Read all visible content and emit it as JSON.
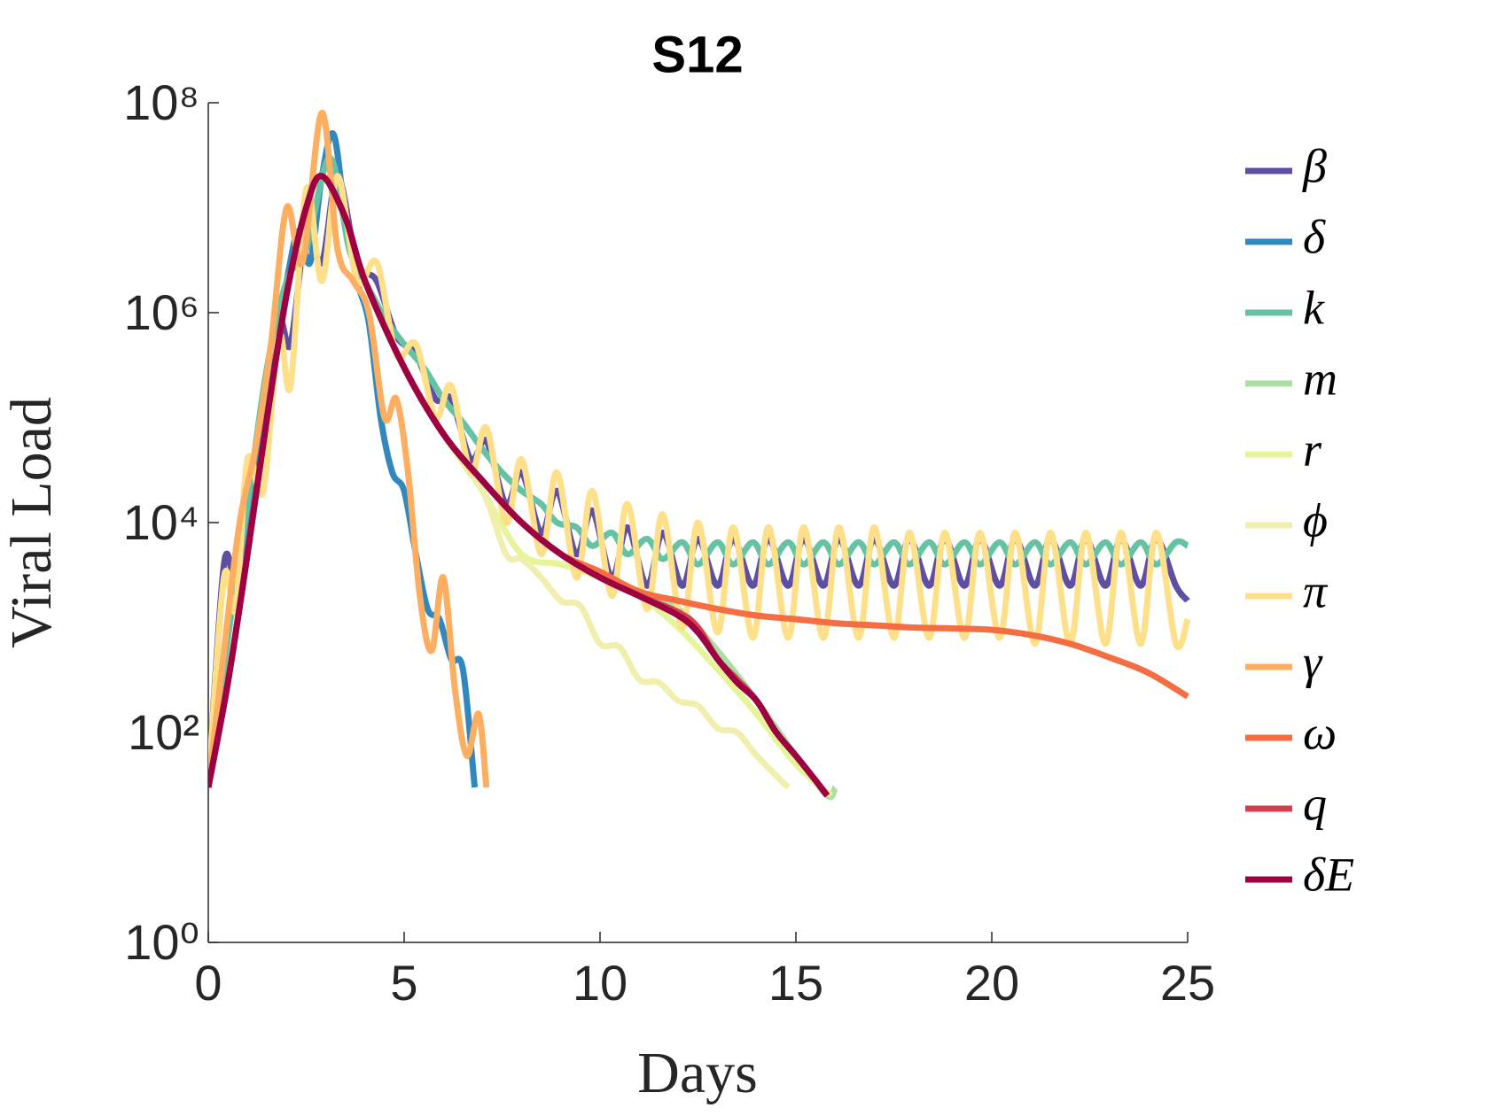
{
  "chart_data": {
    "type": "line",
    "title": "S12",
    "xlabel": "Days",
    "ylabel": "Viral Load",
    "log_y": true,
    "legend": "right",
    "xlim": [
      0,
      25
    ],
    "xticks": [
      0,
      5,
      10,
      15,
      20,
      25
    ],
    "ylim": [
      1,
      100000000
    ],
    "yticks": [
      {
        "value": 1,
        "label": "10⁰"
      },
      {
        "value": 100,
        "label": "10²"
      },
      {
        "value": 10000,
        "label": "10⁴"
      },
      {
        "value": 1000000,
        "label": "10⁶"
      },
      {
        "value": 100000000,
        "label": "10⁸"
      }
    ],
    "series": [
      {
        "name": "β",
        "color": "#5e4fa2",
        "x": [
          0,
          0.4,
          0.7,
          1.0,
          1.4,
          1.8,
          2.1,
          2.5,
          2.9,
          3.3,
          3.8,
          4.3,
          4.8,
          5.3,
          5.8,
          6.2,
          6.7,
          7.1,
          7.6,
          8.0,
          8.5,
          8.9,
          9.4,
          9.8,
          10.3,
          10.7,
          11.2,
          11.6,
          12.1,
          12.5,
          13.0,
          13.4,
          13.9,
          14.3,
          14.8,
          15.2,
          15.7,
          16.1,
          16.6,
          17.0,
          17.5,
          17.9,
          18.4,
          18.8,
          19.3,
          19.7,
          20.2,
          20.6,
          21.1,
          21.5,
          22.0,
          22.4,
          22.9,
          23.3,
          23.8,
          24.2,
          24.7,
          25.0
        ],
        "values": [
          30,
          4000,
          3000,
          30000.0,
          60000.0,
          800000.0,
          500000.0,
          6000000.0,
          3000000.0,
          20000000.0,
          3000000.0,
          2000000.0,
          600000.0,
          400000.0,
          150000.0,
          150000.0,
          40000.0,
          60000.0,
          15000.0,
          30000.0,
          8000.0,
          20000.0,
          5000.0,
          13000.0,
          3000.0,
          9000.0,
          2500.0,
          8000.0,
          2500.0,
          7000.0,
          2500.0,
          7000.0,
          2500.0,
          7000.0,
          2500.0,
          7000.0,
          2500.0,
          7000.0,
          2500.0,
          7000.0,
          2500.0,
          7000.0,
          2500.0,
          7000.0,
          2500.0,
          7000.0,
          2500.0,
          7000.0,
          2500.0,
          7000.0,
          2500.0,
          7000.0,
          2500.0,
          7000.0,
          2500.0,
          7000.0,
          2500.0,
          1800.0
        ]
      },
      {
        "name": "δ",
        "color": "#3288bd",
        "x": [
          0,
          0.5,
          1,
          1.5,
          2,
          2.3,
          2.6,
          2.9,
          3.2,
          3.5,
          3.8,
          4.1,
          4.4,
          4.7,
          5,
          5.3,
          5.6,
          5.9,
          6.2,
          6.5,
          6.8
        ],
        "values": [
          30,
          1000,
          10000.0,
          200000.0,
          2000000.0,
          6000000.0,
          3000000.0,
          20000000.0,
          50000000.0,
          8000000.0,
          2000000.0,
          800000.0,
          100000.0,
          30000.0,
          20000.0,
          5000.0,
          1500.0,
          1200.0,
          500,
          400,
          30
        ]
      },
      {
        "name": "k",
        "color": "#66c2a5",
        "x": [
          0,
          0.5,
          1,
          1.5,
          2,
          2.5,
          3.1,
          3.6,
          4,
          4.5,
          5,
          5.5,
          6,
          6.5,
          7,
          7.5,
          8,
          8.5,
          8.9,
          9.4,
          9.8,
          10.3,
          10.7,
          11.2,
          11.6,
          12.1,
          12.5,
          13.0,
          13.4,
          13.9,
          14.3,
          14.8,
          15.2,
          15.7,
          16.1,
          16.6,
          17.0,
          17.5,
          17.9,
          18.4,
          18.8,
          19.3,
          19.7,
          20.2,
          20.6,
          21.1,
          21.5,
          22.0,
          22.4,
          22.9,
          23.3,
          23.8,
          24.2,
          24.7,
          25.0
        ],
        "values": [
          30,
          800,
          15000.0,
          300000.0,
          2000000.0,
          4000000.0,
          30000000.0,
          4000000.0,
          2000000.0,
          900000.0,
          500000.0,
          300000.0,
          150000.0,
          90000.0,
          50000.0,
          30000.0,
          20000.0,
          15000.0,
          10000.0,
          9000.0,
          6000.0,
          8000.0,
          5000.0,
          7000.0,
          4500.0,
          6500.0,
          4000.0,
          6500.0,
          4000.0,
          6500.0,
          4000.0,
          6500.0,
          4000.0,
          6500.0,
          4000.0,
          6500.0,
          4000.0,
          6500.0,
          4000.0,
          6500.0,
          4000.0,
          6500.0,
          4000.0,
          6500.0,
          4000.0,
          6500.0,
          4000.0,
          6500.0,
          4000.0,
          6500.0,
          4000.0,
          6500.0,
          4000.0,
          6500.0,
          6000.0
        ]
      },
      {
        "name": "m",
        "color": "#abdda4",
        "x": [
          0,
          0.5,
          1,
          1.5,
          2,
          2.5,
          2.9,
          3.5,
          4,
          5,
          6,
          7,
          8,
          9,
          10,
          11,
          12,
          13,
          14,
          15,
          15.8,
          16
        ],
        "values": [
          30,
          300,
          5000.0,
          100000.0,
          1500000.0,
          10000000.0,
          20000000.0,
          8000000.0,
          2000000.0,
          300000.0,
          70000.0,
          25000.0,
          10000.0,
          5000.0,
          3000.0,
          2000.0,
          1500.0,
          600.0,
          200.0,
          60,
          25,
          30
        ]
      },
      {
        "name": "r",
        "color": "#e6f598",
        "x": [
          0,
          0.5,
          1,
          1.5,
          2,
          2.5,
          2.9,
          3.5,
          4,
          5,
          6,
          7,
          8,
          9,
          10,
          11,
          12,
          13,
          14,
          15,
          15.9
        ],
        "values": [
          30,
          300,
          5000.0,
          100000.0,
          1500000.0,
          10000000.0,
          20000000.0,
          8000000.0,
          2000000.0,
          300000.0,
          70000.0,
          20000.0,
          5000.0,
          4000.0,
          3000.0,
          2000.0,
          1000.0,
          400.0,
          150.0,
          50,
          25
        ]
      },
      {
        "name": "ϕ",
        "color": "#f1efae",
        "x": [
          0,
          0.5,
          1,
          1.5,
          2,
          2.5,
          2.9,
          3.5,
          4,
          5,
          6,
          7,
          7.6,
          8,
          8.5,
          9,
          9.5,
          10,
          10.5,
          11,
          11.5,
          12,
          12.5,
          13,
          13.5,
          14,
          14.8
        ],
        "values": [
          30,
          300,
          5000.0,
          100000.0,
          1500000.0,
          10000000.0,
          20000000.0,
          8000000.0,
          2000000.0,
          300000.0,
          70000.0,
          20000.0,
          5000.0,
          4500.0,
          3000.0,
          1800.0,
          1600.0,
          700,
          650,
          320,
          300,
          200,
          180,
          110,
          100,
          60,
          30
        ]
      },
      {
        "name": "π",
        "color": "#fee08b",
        "x": [
          0,
          0.4,
          0.7,
          1.0,
          1.4,
          1.8,
          2.1,
          2.5,
          2.9,
          3.3,
          3.8,
          4.3,
          4.8,
          5.3,
          5.8,
          6.2,
          6.7,
          7.1,
          7.6,
          8.0,
          8.5,
          8.9,
          9.4,
          9.8,
          10.3,
          10.7,
          11.2,
          11.6,
          12.1,
          12.5,
          13.0,
          13.4,
          13.9,
          14.3,
          14.8,
          15.2,
          15.7,
          16.1,
          16.6,
          17.0,
          17.5,
          17.9,
          18.4,
          18.8,
          19.3,
          19.7,
          20.2,
          20.6,
          21.1,
          21.5,
          22.0,
          22.4,
          22.9,
          23.3,
          23.8,
          24.2,
          24.7,
          25.0
        ],
        "values": [
          30,
          3000,
          1500,
          40000.0,
          20000.0,
          600000.0,
          200000.0,
          15000000.0,
          2000000.0,
          20000000.0,
          2000000.0,
          3000000.0,
          400000.0,
          500000.0,
          100000.0,
          200000.0,
          30000.0,
          80000.0,
          10000.0,
          40000.0,
          5000.0,
          30000.0,
          3000.0,
          20000.0,
          2000.0,
          15000.0,
          1500.0,
          12000.0,
          1000.0,
          10000.0,
          900,
          9000.0,
          800,
          9000.0,
          800,
          9000.0,
          800,
          9000.0,
          800,
          9000.0,
          800,
          8000.0,
          800,
          8000.0,
          800,
          8000.0,
          800,
          8000.0,
          700,
          8000.0,
          700,
          8000.0,
          700,
          8000.0,
          700,
          8000.0,
          700,
          1200
        ]
      },
      {
        "name": "γ",
        "color": "#fdae61",
        "x": [
          0,
          0.4,
          0.8,
          1.2,
          1.6,
          2.0,
          2.4,
          2.9,
          3.3,
          3.7,
          4.1,
          4.5,
          4.8,
          5.1,
          5.4,
          5.7,
          6.0,
          6.3,
          6.6,
          6.9,
          7.1
        ],
        "values": [
          30,
          600,
          10000.0,
          50000.0,
          500000.0,
          10000000.0,
          3000000.0,
          80000000.0,
          4000000.0,
          2000000.0,
          1000000.0,
          100000.0,
          150000.0,
          30000.0,
          2000.0,
          600,
          3000.0,
          250,
          60,
          150,
          30
        ]
      },
      {
        "name": "ω",
        "color": "#f46d43",
        "x": [
          0,
          0.5,
          1,
          1.5,
          2,
          2.5,
          2.9,
          3.5,
          4,
          5,
          6,
          7,
          8,
          9,
          10,
          11,
          12,
          13,
          14,
          15,
          16,
          17,
          18,
          19,
          20,
          21,
          22,
          23,
          24,
          25
        ],
        "values": [
          30,
          300,
          5000.0,
          100000.0,
          1500000.0,
          10000000.0,
          20000000.0,
          8000000.0,
          2000000.0,
          300000.0,
          70000.0,
          25000.0,
          10000.0,
          5000.0,
          3400.0,
          2200.0,
          1800.0,
          1500.0,
          1300.0,
          1200.0,
          1100.0,
          1050.0,
          1000.0,
          980,
          950,
          850,
          700,
          520,
          370,
          220
        ]
      },
      {
        "name": "q",
        "color": "#d53e4f",
        "x": [
          0,
          0.5,
          1,
          1.5,
          2,
          2.5,
          2.9,
          3.5,
          4,
          5,
          6,
          7,
          8,
          9,
          10,
          11,
          12,
          12.5,
          13,
          13.5,
          14,
          14.5,
          15,
          15.5,
          15.8
        ],
        "values": [
          30,
          300,
          5000.0,
          100000.0,
          1500000.0,
          10000000.0,
          20000000.0,
          8000000.0,
          2000000.0,
          300000.0,
          70000.0,
          25000.0,
          10000.0,
          5000.0,
          3000.0,
          2000.0,
          1400.0,
          1000.0,
          500.0,
          320.0,
          200.0,
          100,
          60,
          35,
          25
        ]
      },
      {
        "name": "δE",
        "color": "#9e0142",
        "x": [
          0,
          0.5,
          1,
          1.5,
          2,
          2.5,
          2.9,
          3.5,
          4,
          5,
          6,
          7,
          8,
          9,
          10,
          11,
          12,
          12.5,
          13,
          13.5,
          14,
          14.5,
          15,
          15.5,
          15.8
        ],
        "values": [
          30,
          300,
          5000.0,
          100000.0,
          1500000.0,
          10000000.0,
          20000000.0,
          8000000.0,
          2000000.0,
          300000.0,
          70000.0,
          25000.0,
          10000.0,
          5000.0,
          3000.0,
          2000.0,
          1300.0,
          900.0,
          500.0,
          300.0,
          200.0,
          100,
          60,
          35,
          25
        ]
      }
    ]
  }
}
